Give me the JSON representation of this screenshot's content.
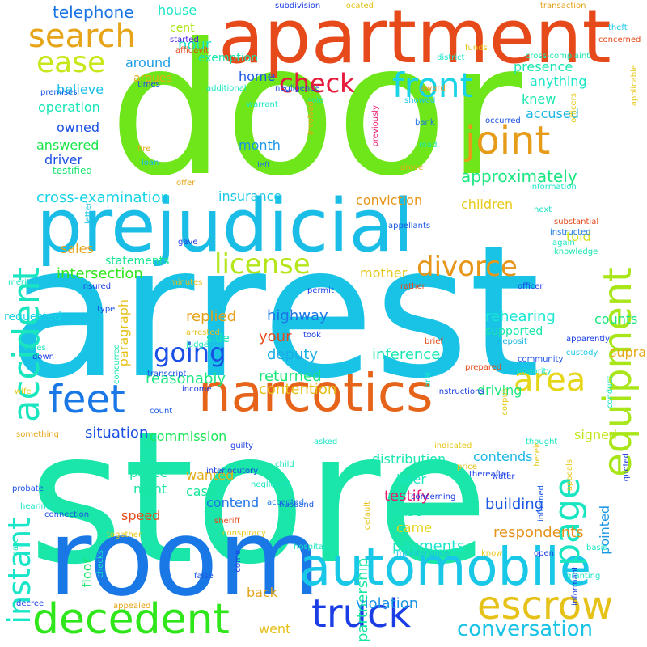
{
  "words": [
    {
      "text": "arrest",
      "color": "#19c3e6"
    },
    {
      "text": "door",
      "color": "#6ee619"
    },
    {
      "text": "store",
      "color": "#19e6a8"
    },
    {
      "text": "room",
      "color": "#1a78e6"
    },
    {
      "text": "apartment",
      "color": "#e6491a"
    },
    {
      "text": "prejudicial",
      "color": "#19bde6"
    },
    {
      "text": "narcotics",
      "color": "#e6641a"
    },
    {
      "text": "automobile",
      "color": "#19c8e6"
    },
    {
      "text": "decedent",
      "color": "#2ee619"
    },
    {
      "text": "accident",
      "color": "#19e6bf"
    },
    {
      "text": "equipment",
      "color": "#a8e619"
    },
    {
      "text": "instant",
      "color": "#19e6c9"
    },
    {
      "text": "escrow",
      "color": "#e6c219"
    },
    {
      "text": "joint",
      "color": "#e69b19"
    },
    {
      "text": "truck",
      "color": "#1a3de6"
    },
    {
      "text": "page",
      "color": "#19e6c0"
    },
    {
      "text": "feet",
      "color": "#1a78e6"
    },
    {
      "text": "search",
      "color": "#e6a419"
    },
    {
      "text": "front",
      "color": "#19d3e6"
    },
    {
      "text": "check",
      "color": "#e61a3d"
    },
    {
      "text": "license",
      "color": "#b4e619"
    },
    {
      "text": "divorce",
      "color": "#e6961a"
    },
    {
      "text": "area",
      "color": "#e6d619"
    },
    {
      "text": "ease",
      "color": "#c8e619"
    },
    {
      "text": "going",
      "color": "#1a4fe6"
    },
    {
      "text": "conversation",
      "color": "#19c3e6"
    },
    {
      "text": "telephone",
      "color": "#1a74e6"
    },
    {
      "text": "approximately",
      "color": "#19e680"
    },
    {
      "text": "cross-examination",
      "color": "#19d3e6"
    },
    {
      "text": "intersection",
      "color": "#2ee619"
    },
    {
      "text": "inference",
      "color": "#19e6b0"
    },
    {
      "text": "rehearing",
      "color": "#19e6d3"
    },
    {
      "text": "contention",
      "color": "#e6bf19"
    },
    {
      "text": "respondents",
      "color": "#e6911a"
    },
    {
      "text": "partnership",
      "color": "#19e6a4"
    },
    {
      "text": "violation",
      "color": "#1a96e6"
    },
    {
      "text": "payments",
      "color": "#19e6c9"
    },
    {
      "text": "building",
      "color": "#1a58e6"
    },
    {
      "text": "testify",
      "color": "#e6196e"
    },
    {
      "text": "situation",
      "color": "#1a4fe6"
    },
    {
      "text": "reasonably",
      "color": "#19e680"
    },
    {
      "text": "returned",
      "color": "#19e67a"
    },
    {
      "text": "replied",
      "color": "#e6a119"
    },
    {
      "text": "highway",
      "color": "#1a74e6"
    },
    {
      "text": "deputy",
      "color": "#19aee6"
    },
    {
      "text": "your",
      "color": "#e6491a"
    },
    {
      "text": "distribution",
      "color": "#19e6b0"
    },
    {
      "text": "commission",
      "color": "#19e657"
    },
    {
      "text": "contends",
      "color": "#19b6e6"
    },
    {
      "text": "signed",
      "color": "#bfe619"
    },
    {
      "text": "pointed",
      "color": "#1a96e6"
    },
    {
      "text": "supported",
      "color": "#19e6a8"
    },
    {
      "text": "counts",
      "color": "#19e680"
    },
    {
      "text": "supra",
      "color": "#e6a819"
    },
    {
      "text": "driving",
      "color": "#19e67a"
    },
    {
      "text": "told",
      "color": "#d3e619"
    },
    {
      "text": "children",
      "color": "#e6c919"
    },
    {
      "text": "conviction",
      "color": "#e69519"
    },
    {
      "text": "sales",
      "color": "#e6a419"
    },
    {
      "text": "statements",
      "color": "#19e691"
    },
    {
      "text": "insurance",
      "color": "#19c8e6"
    },
    {
      "text": "home",
      "color": "#1a58e6"
    },
    {
      "text": "month",
      "color": "#1a96e6"
    },
    {
      "text": "owned",
      "color": "#1a4fe6"
    },
    {
      "text": "driver",
      "color": "#1a4fe6"
    },
    {
      "text": "believe",
      "color": "#19c0e6"
    },
    {
      "text": "operation",
      "color": "#19e6b8"
    },
    {
      "text": "answered",
      "color": "#19e64a"
    },
    {
      "text": "testified",
      "color": "#19e66e"
    },
    {
      "text": "around",
      "color": "#1a9be6"
    },
    {
      "text": "argues",
      "color": "#e6ad19"
    },
    {
      "text": "hour",
      "color": "#19e6c9"
    },
    {
      "text": "house",
      "color": "#19e6c3"
    },
    {
      "text": "cent",
      "color": "#b0e619"
    },
    {
      "text": "exemption",
      "color": "#19e6ad"
    },
    {
      "text": "presence",
      "color": "#19e6b0"
    },
    {
      "text": "anything",
      "color": "#19e6c6"
    },
    {
      "text": "knew",
      "color": "#19e6ad"
    },
    {
      "text": "accused",
      "color": "#19b6e6"
    },
    {
      "text": "mother",
      "color": "#e6c919"
    },
    {
      "text": "police",
      "color": "#19e6a4"
    },
    {
      "text": "night",
      "color": "#19e6a4"
    },
    {
      "text": "wanted",
      "color": "#e6ad19"
    },
    {
      "text": "cash",
      "color": "#19e69b"
    },
    {
      "text": "contend",
      "color": "#1a74e6"
    },
    {
      "text": "speed",
      "color": "#e6491a"
    },
    {
      "text": "floor",
      "color": "#19e66a"
    },
    {
      "text": "back",
      "color": "#e6a419"
    },
    {
      "text": "went",
      "color": "#e6bf19"
    },
    {
      "text": "later",
      "color": "#19e6bf"
    },
    {
      "text": "lease",
      "color": "#19e6b0"
    },
    {
      "text": "came",
      "color": "#e6d319"
    },
    {
      "text": "paragraph",
      "color": "#e6c219"
    },
    {
      "text": "side",
      "color": "#19e6b8"
    },
    {
      "text": "requested",
      "color": "#19d3e6"
    },
    {
      "text": "subdivision",
      "color": "#1a3de6"
    },
    {
      "text": "located",
      "color": "#e6c019"
    },
    {
      "text": "transaction",
      "color": "#e6a119"
    },
    {
      "text": "theft",
      "color": "#19c8e6"
    },
    {
      "text": "concerned",
      "color": "#e6491a"
    },
    {
      "text": "started",
      "color": "#4a1ae6"
    },
    {
      "text": "affidavit",
      "color": "#e6491a"
    },
    {
      "text": "funds",
      "color": "#e6c019"
    },
    {
      "text": "district",
      "color": "#19e6c9"
    },
    {
      "text": "cross-complaint",
      "color": "#19e6ad"
    },
    {
      "text": "applicable",
      "color": "#e6c919"
    },
    {
      "text": "times",
      "color": "#1a4fe6"
    },
    {
      "text": "additional",
      "color": "#19e6bf"
    },
    {
      "text": "award",
      "color": "#e6911a"
    },
    {
      "text": "sole",
      "color": "#19e6ad"
    },
    {
      "text": "showed",
      "color": "#19c8e6"
    },
    {
      "text": "premises",
      "color": "#1a58e6"
    },
    {
      "text": "negligence",
      "color": "#1a4fe6"
    },
    {
      "text": "involved",
      "color": "#e6a419"
    },
    {
      "text": "previously",
      "color": "#e6196e"
    },
    {
      "text": "bank",
      "color": "#1a74e6"
    },
    {
      "text": "occurred",
      "color": "#1a4fe6"
    },
    {
      "text": "officers",
      "color": "#e6c919"
    },
    {
      "text": "warrant",
      "color": "#19e6c6"
    },
    {
      "text": "fire",
      "color": "#e6a819"
    },
    {
      "text": "road",
      "color": "#19e6a8"
    },
    {
      "text": "loan",
      "color": "#19b6e6"
    },
    {
      "text": "left",
      "color": "#1a74e6"
    },
    {
      "text": "drove",
      "color": "#e6ad19"
    },
    {
      "text": "information",
      "color": "#19e6c9"
    },
    {
      "text": "offer",
      "color": "#e6a819"
    },
    {
      "text": "next",
      "color": "#19e6c3"
    },
    {
      "text": "letter",
      "color": "#19c3e6"
    },
    {
      "text": "appellants",
      "color": "#1a58e6"
    },
    {
      "text": "substantial",
      "color": "#e6491a"
    },
    {
      "text": "instructed",
      "color": "#1a78e6"
    },
    {
      "text": "again",
      "color": "#19e6b8"
    },
    {
      "text": "knowledge",
      "color": "#19e6b0"
    },
    {
      "text": "gave",
      "color": "#1a3de6"
    },
    {
      "text": "merit",
      "color": "#19e6bf"
    },
    {
      "text": "minutes",
      "color": "#e6c219"
    },
    {
      "text": "insured",
      "color": "#1a3de6"
    },
    {
      "text": "permit",
      "color": "#1a3de6"
    },
    {
      "text": "rather",
      "color": "#e6491a"
    },
    {
      "text": "officer",
      "color": "#1a3de6"
    },
    {
      "text": "type",
      "color": "#1a4fe6"
    },
    {
      "text": "arrested",
      "color": "#e6bf19"
    },
    {
      "text": "took",
      "color": "#1a3de6"
    },
    {
      "text": "brief",
      "color": "#e6491a"
    },
    {
      "text": "deposit",
      "color": "#19b6e6"
    },
    {
      "text": "apparently",
      "color": "#1a3de6"
    },
    {
      "text": "custody",
      "color": "#19c8e6"
    },
    {
      "text": "miles",
      "color": "#19e6b8"
    },
    {
      "text": "down",
      "color": "#1a3de6"
    },
    {
      "text": "judge",
      "color": "#19e6bf"
    },
    {
      "text": "prepared",
      "color": "#e6491a"
    },
    {
      "text": "community",
      "color": "#1a4fe6"
    },
    {
      "text": "majority",
      "color": "#19e6c0"
    },
    {
      "text": "concurred",
      "color": "#19e6b0"
    },
    {
      "text": "wife",
      "color": "#e6c919"
    },
    {
      "text": "income",
      "color": "#1a3de6"
    },
    {
      "text": "transcript",
      "color": "#1a4fe6"
    },
    {
      "text": "oral",
      "color": "#19e6c9"
    },
    {
      "text": "instructions",
      "color": "#1a3de6"
    },
    {
      "text": "corpus",
      "color": "#e6c919"
    },
    {
      "text": "conduct",
      "color": "#19e6c3"
    },
    {
      "text": "count",
      "color": "#1a58e6"
    },
    {
      "text": "something",
      "color": "#e6a819"
    },
    {
      "text": "guilty",
      "color": "#1a3de6"
    },
    {
      "text": "asked",
      "color": "#19e6c6"
    },
    {
      "text": "indicated",
      "color": "#e6c919"
    },
    {
      "text": "thought",
      "color": "#19e6c0"
    },
    {
      "text": "quoted",
      "color": "#1a3de6"
    },
    {
      "text": "interlocutory",
      "color": "#1a3de6"
    },
    {
      "text": "price",
      "color": "#e6c019"
    },
    {
      "text": "water",
      "color": "#1a3de6"
    },
    {
      "text": "appeals",
      "color": "#e6c919"
    },
    {
      "text": "child",
      "color": "#19e6bf"
    },
    {
      "text": "negligent",
      "color": "#19e6bf"
    },
    {
      "text": "probate",
      "color": "#1a4fe6"
    },
    {
      "text": "accepted",
      "color": "#1a78e6"
    },
    {
      "text": "thereafter",
      "color": "#1a3de6"
    },
    {
      "text": "herein",
      "color": "#e6c919"
    },
    {
      "text": "hearing",
      "color": "#19e6c6"
    },
    {
      "text": "connection",
      "color": "#1a4fe6"
    },
    {
      "text": "sheriff",
      "color": "#e6491a"
    },
    {
      "text": "concerning",
      "color": "#1a3de6"
    },
    {
      "text": "husband",
      "color": "#1a58e6"
    },
    {
      "text": "conspiracy",
      "color": "#e6c919"
    },
    {
      "text": "default",
      "color": "#e6c219"
    },
    {
      "text": "together",
      "color": "#e6c919"
    },
    {
      "text": "maintenance",
      "color": "#19c3e6"
    },
    {
      "text": "informed",
      "color": "#1a58e6"
    },
    {
      "text": "hospital",
      "color": "#19e6bf"
    },
    {
      "text": "care",
      "color": "#19e6b8"
    },
    {
      "text": "checks",
      "color": "#19e6c6"
    },
    {
      "text": "come",
      "color": "#1a3de6"
    },
    {
      "text": "know",
      "color": "#e6c919"
    },
    {
      "text": "open",
      "color": "#1a3de6"
    },
    {
      "text": "informant",
      "color": "#1a3de6"
    },
    {
      "text": "basis",
      "color": "#19e6bf"
    },
    {
      "text": "granting",
      "color": "#19e6c6"
    },
    {
      "text": "false",
      "color": "#1a58e6"
    },
    {
      "text": "appealed",
      "color": "#e6a419"
    },
    {
      "text": "decree",
      "color": "#1a3de6"
    }
  ]
}
